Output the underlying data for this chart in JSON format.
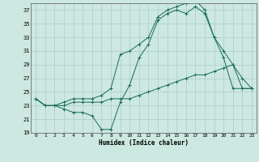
{
  "xlabel": "Humidex (Indice chaleur)",
  "bg_color": "#cce8e0",
  "grid_color": "#aacccc",
  "line_color": "#1a6b5a",
  "xlim": [
    -0.5,
    23.5
  ],
  "ylim": [
    19,
    38
  ],
  "yticks": [
    19,
    21,
    23,
    25,
    27,
    29,
    31,
    33,
    35,
    37
  ],
  "xticks": [
    0,
    1,
    2,
    3,
    4,
    5,
    6,
    7,
    8,
    9,
    10,
    11,
    12,
    13,
    14,
    15,
    16,
    17,
    18,
    19,
    20,
    21,
    22,
    23
  ],
  "series": [
    [
      24.0,
      23.0,
      23.0,
      22.5,
      22.0,
      22.0,
      21.5,
      19.5,
      19.5,
      23.5,
      26.0,
      30.0,
      32.0,
      35.5,
      36.5,
      37.0,
      36.5,
      37.5,
      36.5,
      33.0,
      31.0,
      29.0,
      27.0,
      25.5
    ],
    [
      24.0,
      23.0,
      23.0,
      23.0,
      23.5,
      23.5,
      23.5,
      23.5,
      24.0,
      24.0,
      24.0,
      24.5,
      25.0,
      25.5,
      26.0,
      26.5,
      27.0,
      27.5,
      27.5,
      28.0,
      28.5,
      29.0,
      25.5,
      25.5
    ],
    [
      24.0,
      23.0,
      23.0,
      23.5,
      24.0,
      24.0,
      24.0,
      24.5,
      25.5,
      30.5,
      31.0,
      32.0,
      33.0,
      36.0,
      37.0,
      37.5,
      38.0,
      38.5,
      37.0,
      33.0,
      30.0,
      25.5,
      25.5,
      25.5
    ]
  ]
}
